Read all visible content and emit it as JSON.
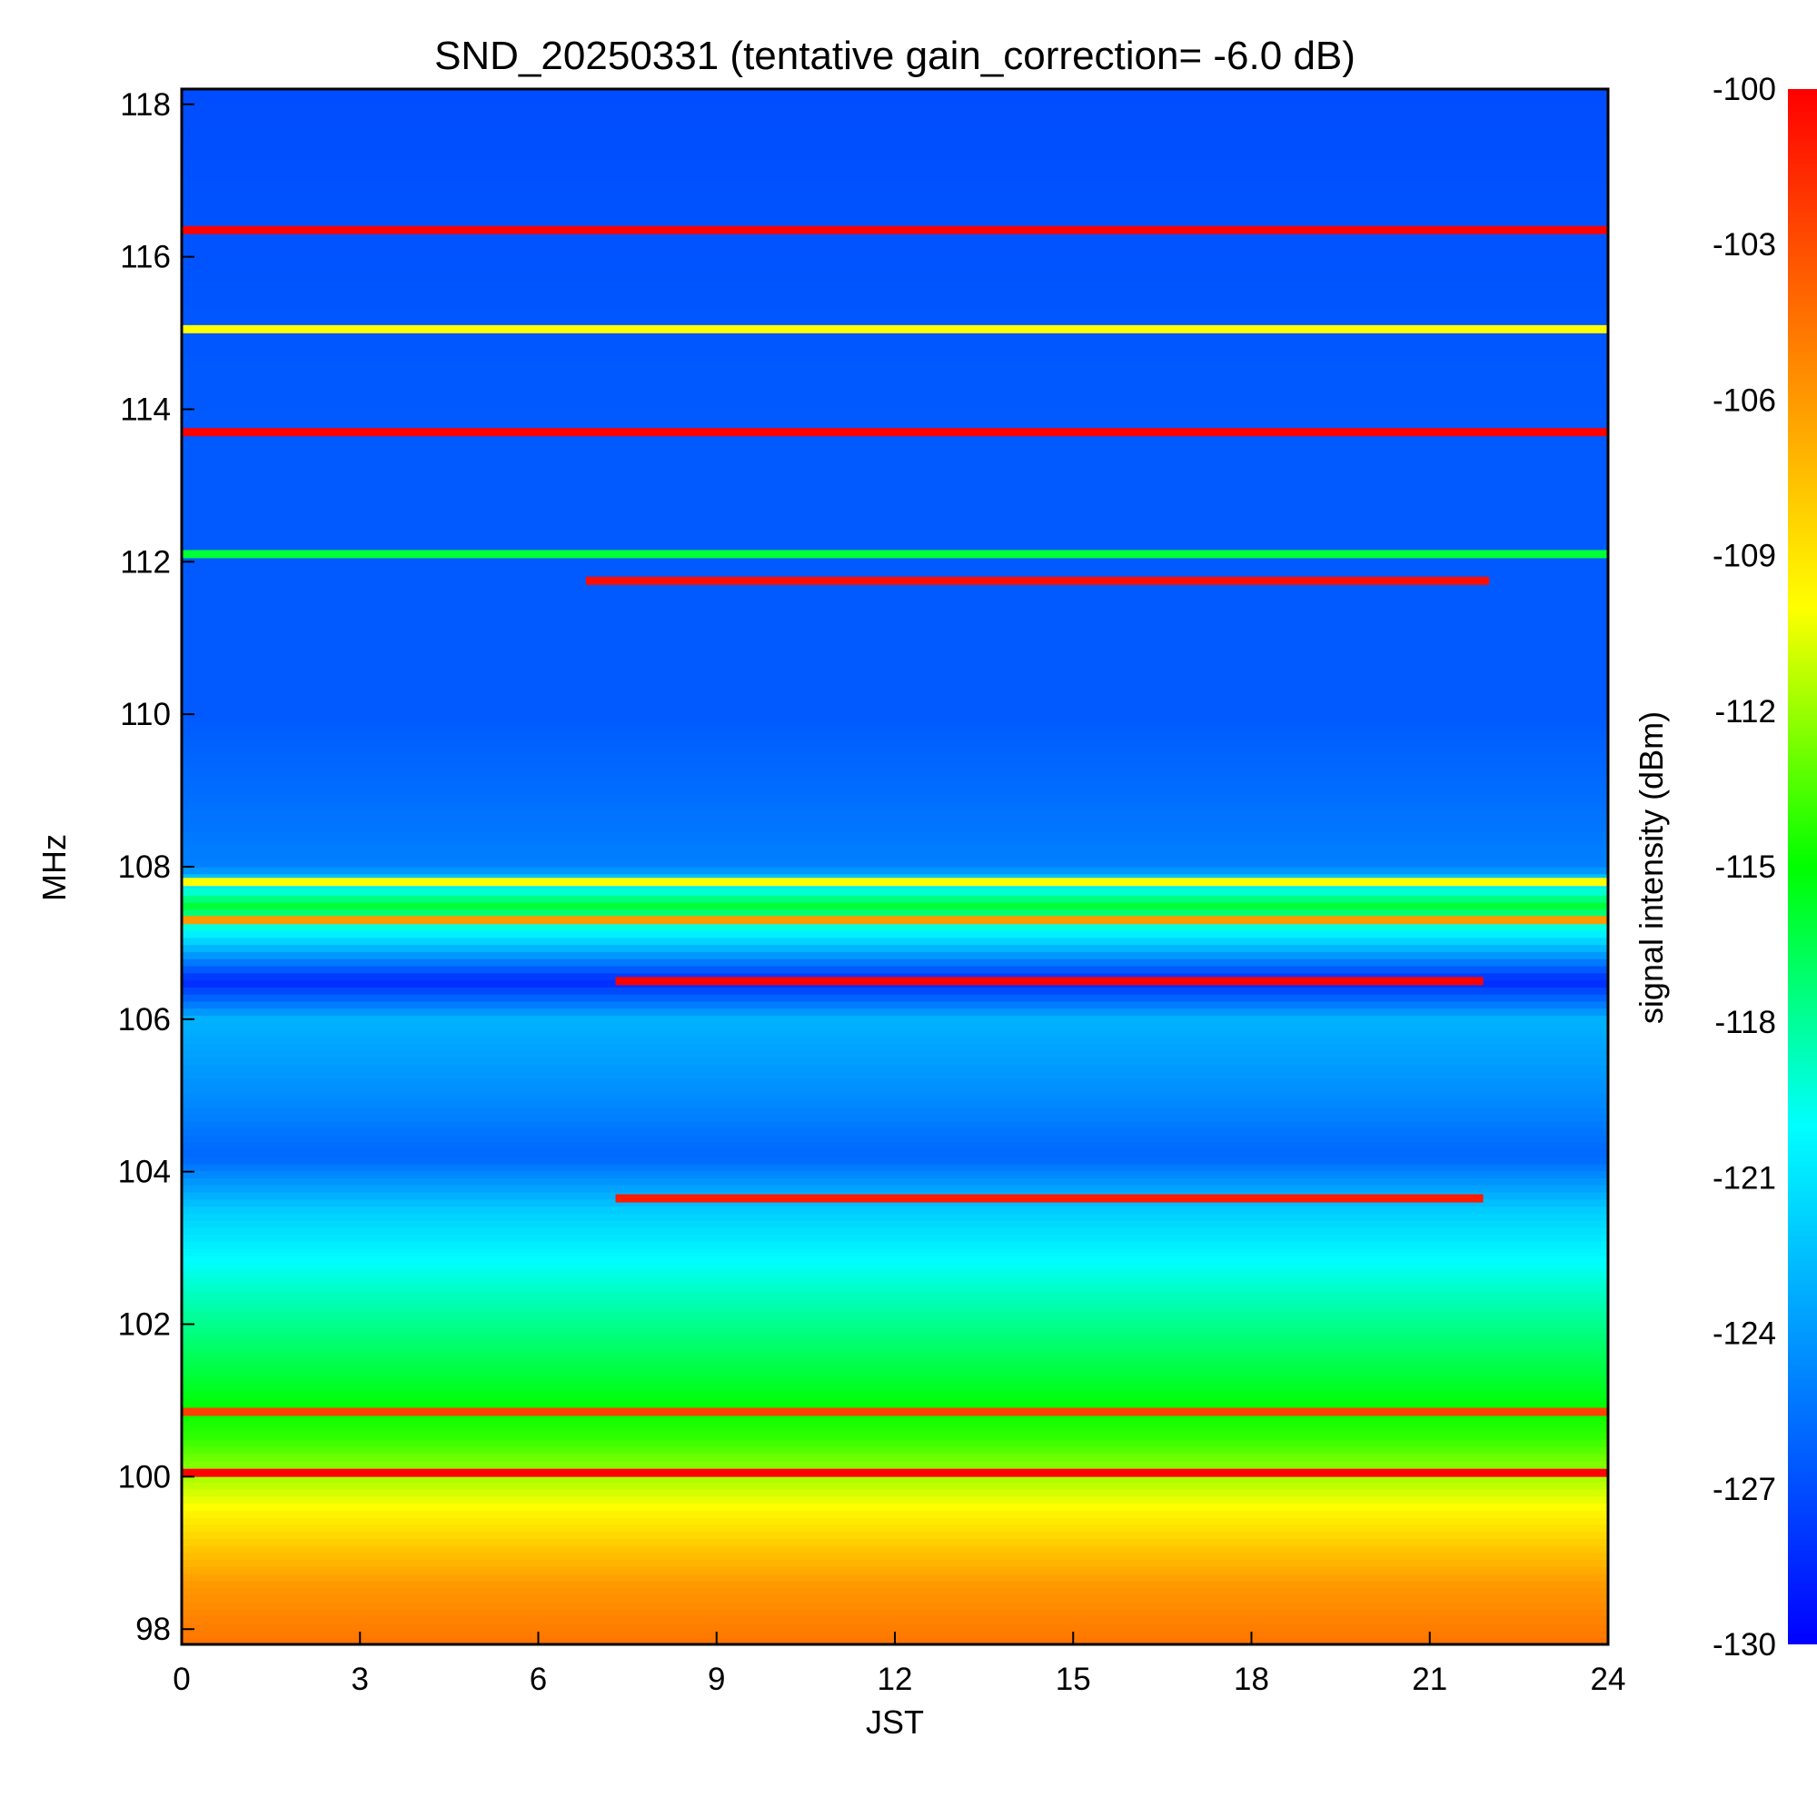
{
  "chart_data": {
    "type": "heatmap",
    "title": "SND_20250331 (tentative gain_correction= -6.0 dB)",
    "xlabel": "JST",
    "ylabel": "MHz",
    "colorbar_label": "signal intensity (dBm)",
    "xlim": [
      0,
      24
    ],
    "ylim": [
      97.8,
      118.2
    ],
    "zlim": [
      -130,
      -100
    ],
    "x_ticks": [
      0,
      3,
      6,
      9,
      12,
      15,
      18,
      21,
      24
    ],
    "y_ticks": [
      98,
      100,
      102,
      104,
      106,
      108,
      110,
      112,
      114,
      116,
      118
    ],
    "colorbar_ticks": [
      -100,
      -103,
      -106,
      -109,
      -112,
      -115,
      -118,
      -121,
      -124,
      -127,
      -130
    ],
    "colormap": [
      "#0000ff",
      "#0080ff",
      "#00ffff",
      "#00ff00",
      "#ffff00",
      "#ff8000",
      "#ff0000"
    ],
    "background_profile": [
      {
        "freq": 97.8,
        "dbm": -104.5
      },
      {
        "freq": 98.6,
        "dbm": -106.0
      },
      {
        "freq": 99.5,
        "dbm": -109.5
      },
      {
        "freq": 100.5,
        "dbm": -114.0
      },
      {
        "freq": 101.5,
        "dbm": -116.5
      },
      {
        "freq": 102.5,
        "dbm": -119.0
      },
      {
        "freq": 103.5,
        "dbm": -122.0
      },
      {
        "freq": 104.2,
        "dbm": -126.0
      },
      {
        "freq": 105.0,
        "dbm": -124.5
      },
      {
        "freq": 106.0,
        "dbm": -123.0
      },
      {
        "freq": 106.5,
        "dbm": -128.5
      },
      {
        "freq": 107.0,
        "dbm": -122.0
      },
      {
        "freq": 107.5,
        "dbm": -116.0
      },
      {
        "freq": 108.0,
        "dbm": -125.0
      },
      {
        "freq": 110.0,
        "dbm": -126.5
      },
      {
        "freq": 114.0,
        "dbm": -126.5
      },
      {
        "freq": 118.2,
        "dbm": -127.0
      }
    ],
    "persistent_lines": [
      {
        "freq": 116.35,
        "dbm": -100.0,
        "t_start": 0,
        "t_end": 24
      },
      {
        "freq": 115.05,
        "dbm": -110.0,
        "t_start": 0,
        "t_end": 24
      },
      {
        "freq": 113.7,
        "dbm": -100.0,
        "t_start": 0,
        "t_end": 24
      },
      {
        "freq": 112.1,
        "dbm": -116.0,
        "t_start": 0,
        "t_end": 24
      },
      {
        "freq": 111.75,
        "dbm": -100.5,
        "t_start": 6.8,
        "t_end": 22.0
      },
      {
        "freq": 107.8,
        "dbm": -110.0,
        "t_start": 0,
        "t_end": 24
      },
      {
        "freq": 107.3,
        "dbm": -106.0,
        "t_start": 0,
        "t_end": 24
      },
      {
        "freq": 106.5,
        "dbm": -100.0,
        "t_start": 7.3,
        "t_end": 21.9
      },
      {
        "freq": 103.65,
        "dbm": -101.0,
        "t_start": 7.3,
        "t_end": 21.9
      },
      {
        "freq": 100.85,
        "dbm": -102.5,
        "t_start": 0,
        "t_end": 24
      },
      {
        "freq": 100.05,
        "dbm": -100.0,
        "t_start": 0,
        "t_end": 24
      }
    ]
  }
}
